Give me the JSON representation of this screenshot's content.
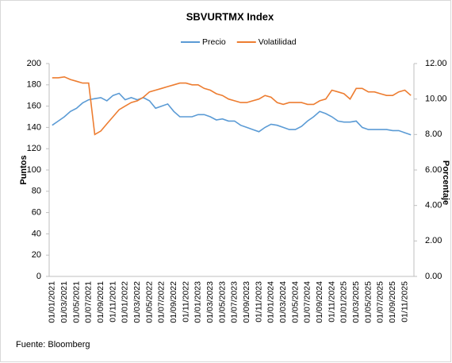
{
  "chart_data": {
    "type": "line",
    "title": "SBVURTMX Index",
    "y_label": "Puntos",
    "y2_label": "Porcentaje",
    "source": "Fuente: Bloomberg",
    "legend": "top",
    "categories": [
      "01/01/2021",
      null,
      "01/03/2021",
      null,
      "01/05/2021",
      null,
      "01/07/2021",
      null,
      "01/09/2021",
      null,
      "01/11/2021",
      null,
      "01/01/2022",
      null,
      "01/03/2022",
      null,
      "01/05/2022",
      null,
      "01/07/2022",
      null,
      "01/09/2022",
      null,
      "01/11/2022",
      null,
      "01/01/2023",
      null,
      "01/03/2023",
      null,
      "01/05/2023",
      null,
      "01/07/2023",
      null,
      "01/09/2023",
      null,
      "01/11/2023",
      null,
      "01/01/2024",
      null,
      "01/03/2024",
      null,
      "01/05/2024",
      null,
      "01/07/2024",
      null,
      "01/09/2024",
      null,
      "01/11/2024",
      null,
      "01/01/2025",
      null,
      "01/03/2025",
      null,
      "01/05/2025",
      null,
      "01/07/2025",
      null,
      "01/09/2025",
      null,
      "01/11/2025",
      null
    ],
    "series": [
      {
        "name": "Precio",
        "color": "#5b9bd5",
        "axis": "y",
        "values": [
          142,
          146,
          150,
          155,
          158,
          163,
          166,
          167,
          168,
          165,
          170,
          172,
          166,
          168,
          166,
          168,
          165,
          158,
          160,
          162,
          155,
          150,
          150,
          150,
          152,
          152,
          150,
          147,
          148,
          146,
          146,
          142,
          140,
          138,
          136,
          140,
          143,
          142,
          140,
          138,
          138,
          141,
          146,
          150,
          155,
          153,
          150,
          146,
          145,
          145,
          146,
          140,
          138,
          138,
          138,
          138,
          137,
          137,
          135,
          133
        ]
      },
      {
        "name": "Volatilidad",
        "color": "#ed7d31",
        "axis": "y2",
        "values": [
          11.2,
          11.2,
          11.25,
          11.1,
          11.0,
          10.9,
          10.9,
          8.0,
          8.2,
          8.6,
          9.0,
          9.4,
          9.6,
          9.8,
          9.9,
          10.1,
          10.4,
          10.5,
          10.6,
          10.7,
          10.8,
          10.9,
          10.9,
          10.8,
          10.8,
          10.6,
          10.5,
          10.3,
          10.2,
          10.0,
          9.9,
          9.8,
          9.8,
          9.9,
          10.0,
          10.2,
          10.1,
          9.8,
          9.7,
          9.8,
          9.8,
          9.8,
          9.7,
          9.7,
          9.9,
          10.0,
          10.5,
          10.4,
          10.3,
          10.0,
          10.6,
          10.6,
          10.4,
          10.4,
          10.3,
          10.2,
          10.2,
          10.4,
          10.5,
          10.2
        ]
      }
    ],
    "ylim": [
      0,
      200
    ],
    "yticks": [
      0,
      20,
      40,
      60,
      80,
      100,
      120,
      140,
      160,
      180,
      200
    ],
    "y2lim": [
      0,
      12
    ],
    "y2ticks": [
      {
        "value": 0,
        "label": "0.00"
      },
      {
        "value": 2,
        "label": "2.00"
      },
      {
        "value": 4,
        "label": "4.00"
      },
      {
        "value": 6,
        "label": "6.00"
      },
      {
        "value": 8,
        "label": "8.00"
      },
      {
        "value": 10,
        "label": "10.00"
      },
      {
        "value": 12,
        "label": "12.00"
      }
    ],
    "grid": false
  }
}
